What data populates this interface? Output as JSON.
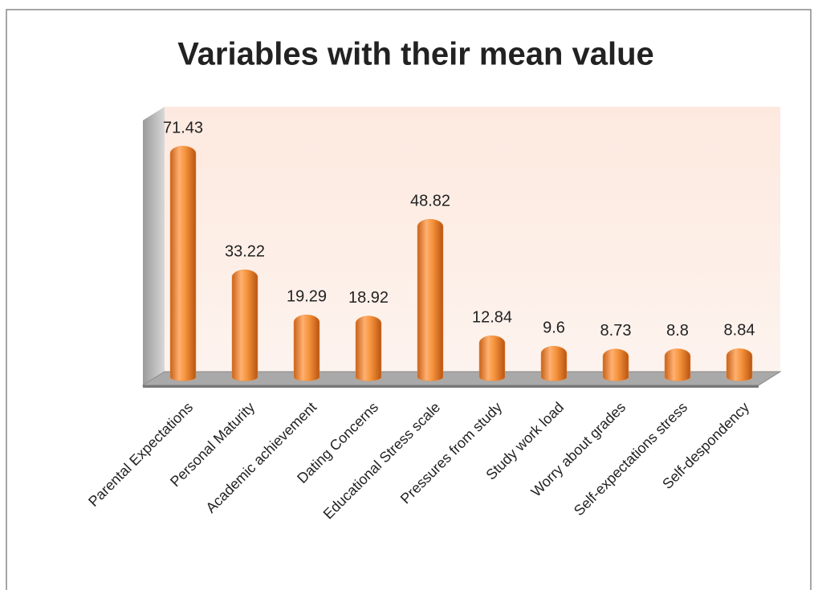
{
  "chart_data": {
    "type": "bar",
    "title": "Variables with their mean value",
    "categories": [
      "Parental Expectations",
      "Personal Maturity",
      "Academic achievement",
      "Dating Concerns",
      "Educational Stress scale",
      "Pressures from study",
      "Study work load",
      "Worry about grades",
      "Self-expectations stress",
      "Self-despondency"
    ],
    "values": [
      71.43,
      33.22,
      19.29,
      18.92,
      48.82,
      12.84,
      9.6,
      8.73,
      8.8,
      8.84
    ],
    "color": "#f4913a"
  }
}
